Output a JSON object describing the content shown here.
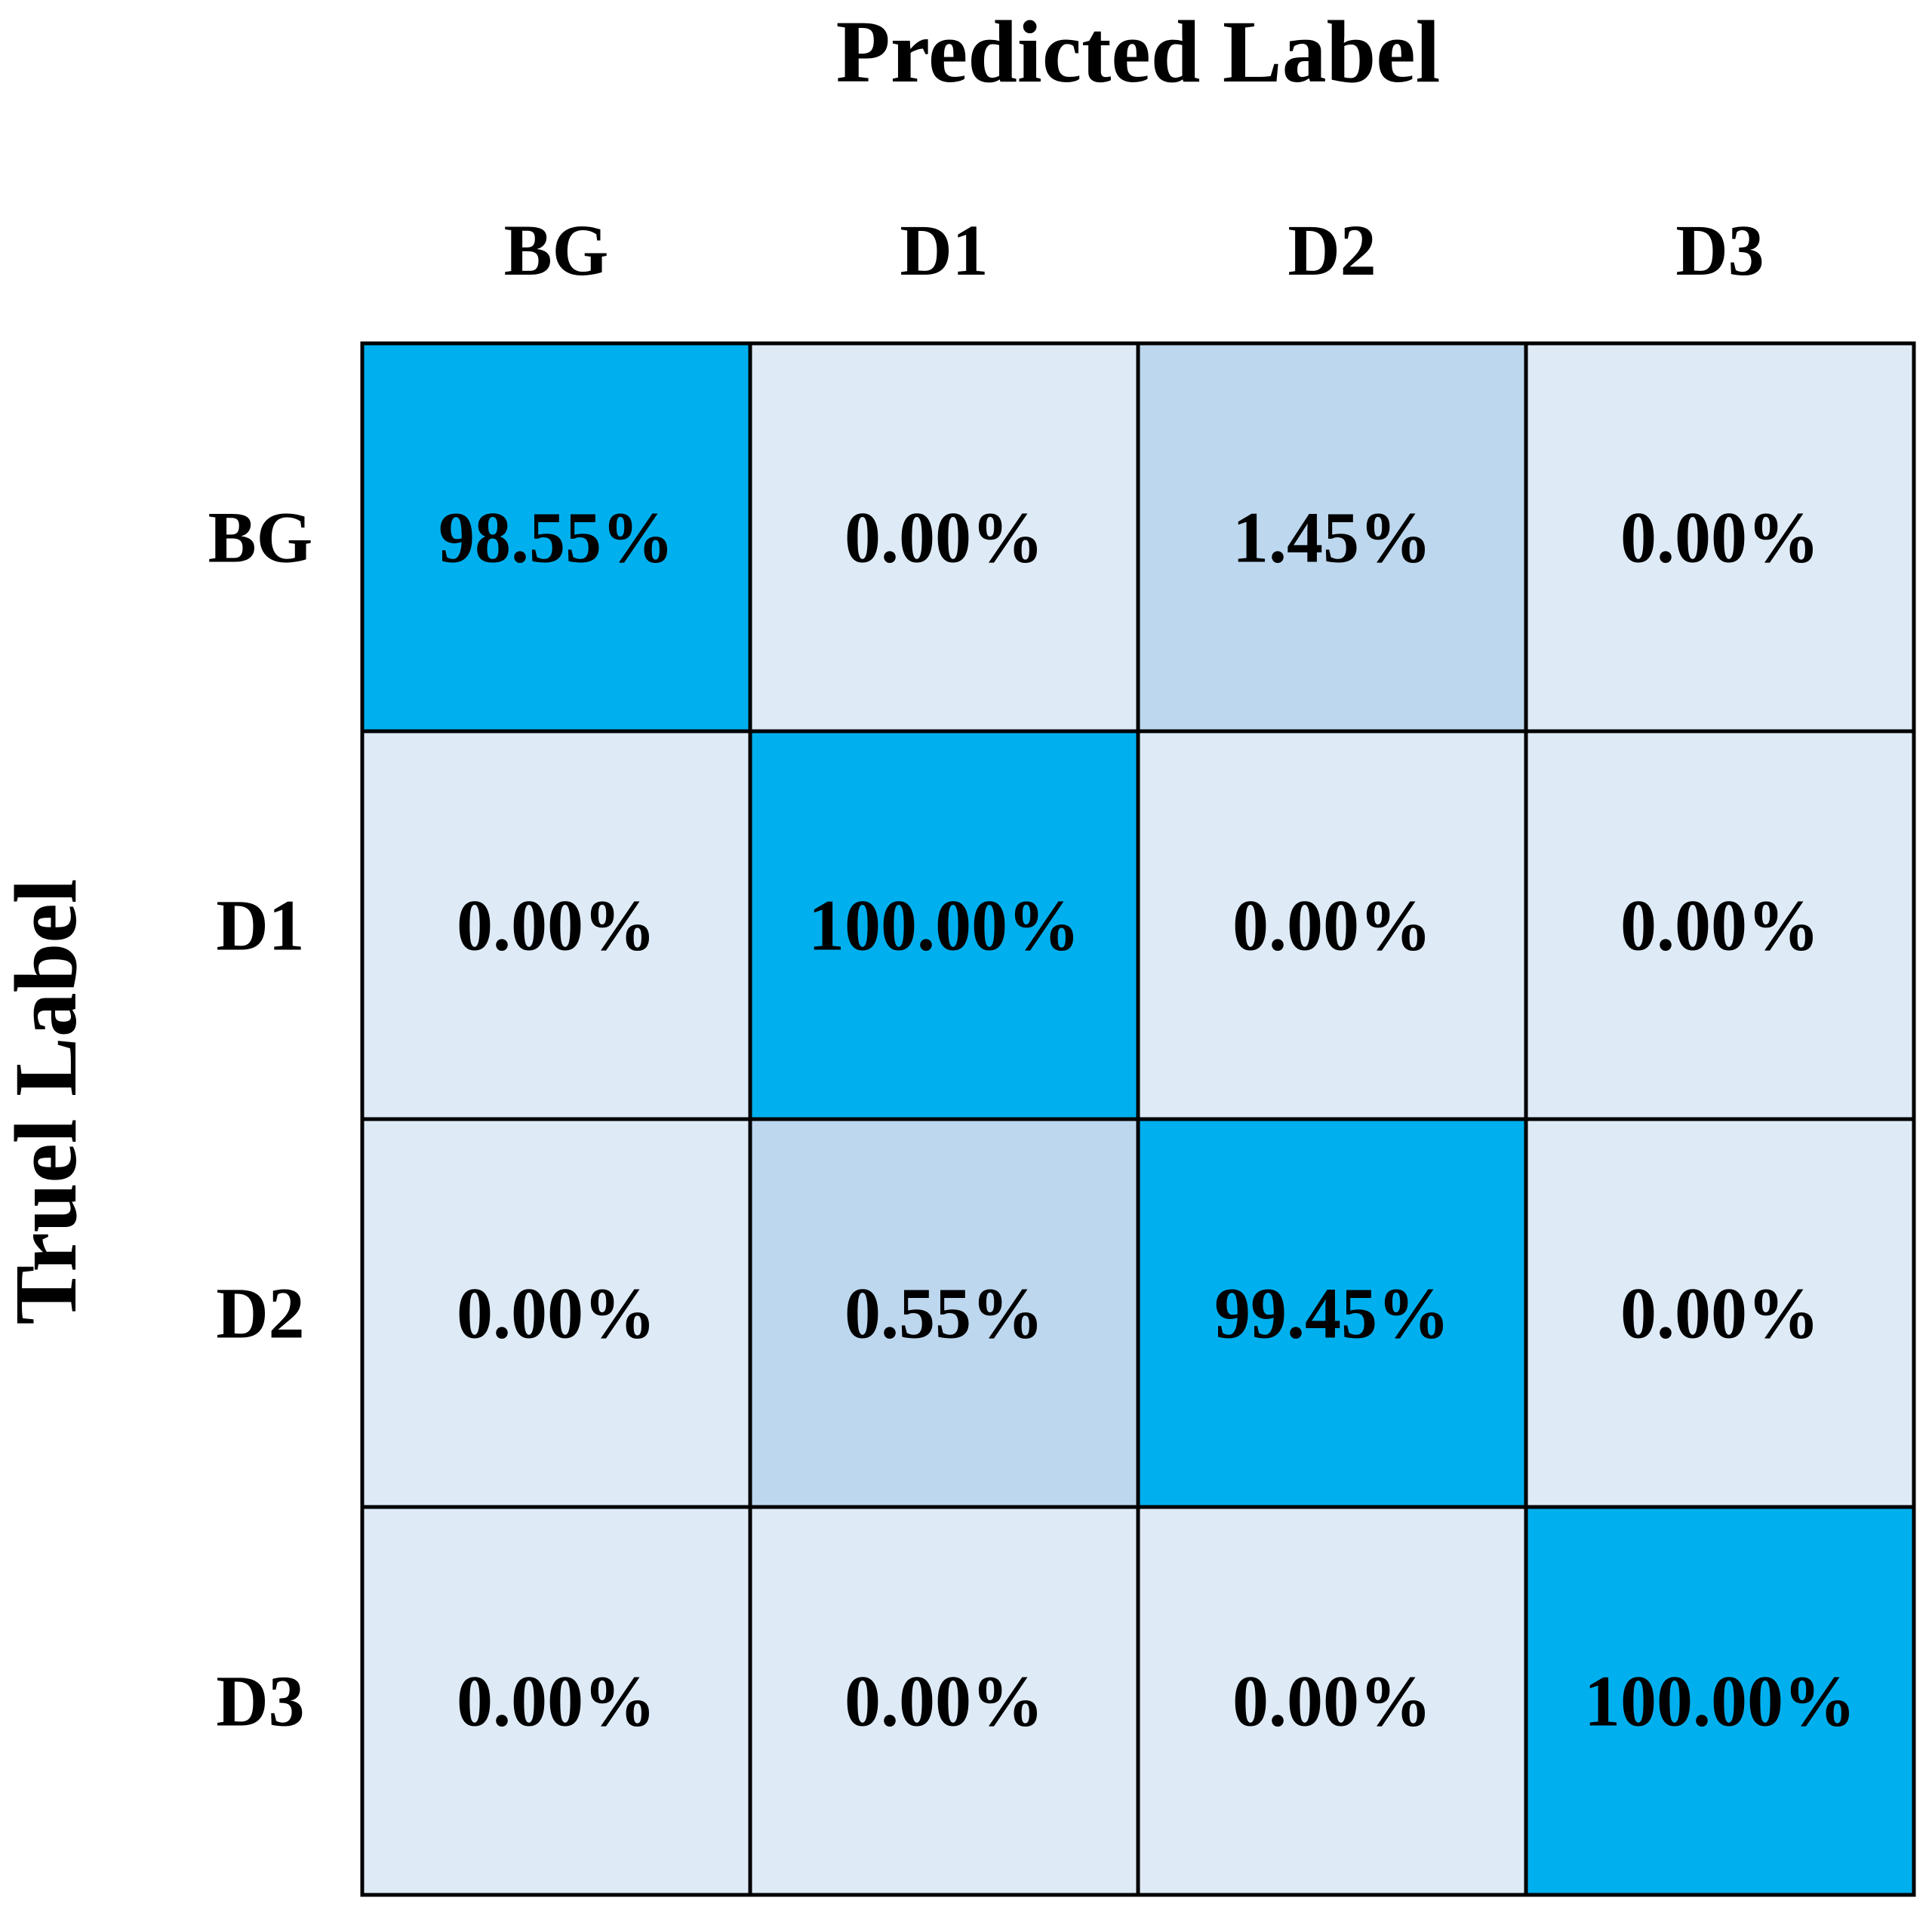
{
  "chart_data": {
    "type": "heatmap",
    "xlabel": "Predicted Label",
    "ylabel": "Truel Label",
    "x_categories": [
      "BG",
      "D1",
      "D2",
      "D3"
    ],
    "y_categories": [
      "BG",
      "D1",
      "D2",
      "D3"
    ],
    "values": [
      [
        98.55,
        0.0,
        1.45,
        0.0
      ],
      [
        0.0,
        100.0,
        0.0,
        0.0
      ],
      [
        0.0,
        0.55,
        99.45,
        0.0
      ],
      [
        0.0,
        0.0,
        0.0,
        100.0
      ]
    ],
    "cell_labels": [
      [
        "98.55%",
        "0.00%",
        "1.45%",
        "0.00%"
      ],
      [
        "0.00%",
        "100.00%",
        "0.00%",
        "0.00%"
      ],
      [
        "0.00%",
        "0.55%",
        "99.45%",
        "0.00%"
      ],
      [
        "0.00%",
        "0.00%",
        "0.00%",
        "100.00%"
      ]
    ],
    "colors": {
      "high": "#00b0ee",
      "low_nonzero": "#bdd7ee",
      "zero": "#deebf7",
      "border": "#000000"
    }
  }
}
